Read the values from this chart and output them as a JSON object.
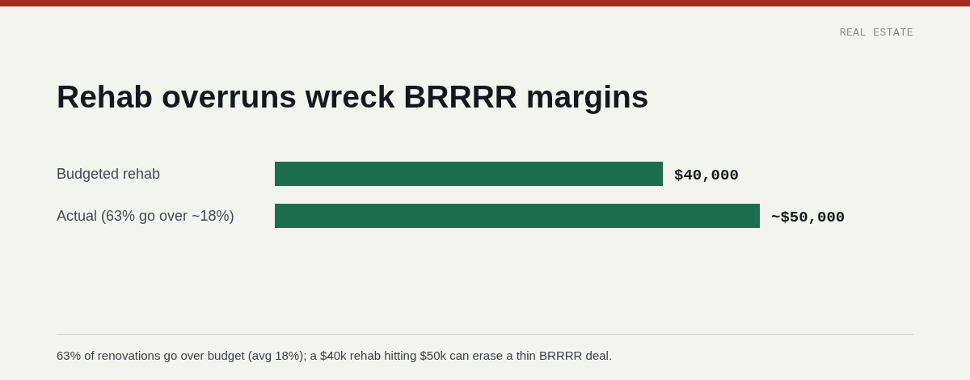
{
  "chart_data": {
    "type": "bar",
    "orientation": "horizontal",
    "title": "Rehab overruns wreck BRRRR margins",
    "subtitle": "REAL ESTATE",
    "categories": [
      "Budgeted rehab",
      "Actual (63% go over ~18%)"
    ],
    "values": [
      40000,
      50000
    ],
    "value_labels": [
      "$40,000",
      "~$50,000"
    ],
    "color": "#1c6e50",
    "grid": false,
    "legend": false,
    "annotations": [
      "63% of renovations go over budget (avg 18%); a $40k rehab hitting $50k can erase a thin BRRRR deal."
    ]
  }
}
